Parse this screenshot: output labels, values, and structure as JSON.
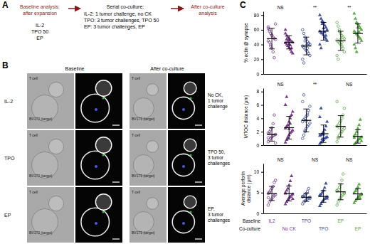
{
  "panel_a": {
    "label": "A",
    "start": [
      "Baseline analysis:",
      "after expansion"
    ],
    "conditions": [
      "IL-2",
      "TPO 50",
      "EP"
    ],
    "middle_title": "Serial co-culture:",
    "middle_lines": [
      "IL-2: 1 tumor challenge, no CK",
      "TPO: 3 tumor challenges, TPO 50",
      "EP: 3 tumor challenges, EP"
    ],
    "end": [
      "After co-culture",
      "analysis"
    ]
  },
  "panel_b": {
    "label": "B",
    "column_titles": [
      "Baseline",
      "After co-culture"
    ],
    "cell_labels": [
      "T cell",
      "BV173 (target)"
    ],
    "rows": [
      {
        "label": "IL-2",
        "note": [
          "No CK,",
          "1 tumor",
          "challenge"
        ]
      },
      {
        "label": "TPO",
        "note": [
          "TPO 50,",
          "3 tumor",
          "challenges"
        ]
      },
      {
        "label": "EP",
        "note": [
          "EP,",
          "3 tumor",
          "challenges"
        ]
      }
    ]
  },
  "panel_c_label": "C",
  "x_label_rows": [
    {
      "label": "Baseline",
      "labels": [
        "IL2",
        null,
        "TPO",
        null,
        "EP",
        null
      ]
    },
    {
      "label": "Co-culture",
      "labels": [
        null,
        "No CK",
        null,
        "TPO",
        null,
        "EP"
      ]
    }
  ],
  "chart_data": [
    {
      "type": "scatter",
      "y_label": [
        "% actin @ synapse"
      ],
      "ylim": [
        0,
        85
      ],
      "yticks": [
        0,
        20,
        40,
        60,
        80
      ],
      "annotations": [
        "NS",
        "**",
        "**"
      ],
      "series": [
        {
          "color": "#7a3b8f",
          "marker": "circle-open",
          "mean": 48,
          "sd": 14,
          "values": [
            62,
            58,
            55,
            52,
            50,
            48,
            47,
            45,
            43,
            40,
            35,
            30,
            22,
            68,
            64,
            60,
            38,
            53
          ]
        },
        {
          "color": "#7a3b8f",
          "marker": "triangle",
          "mean": 43,
          "sd": 9,
          "values": [
            55,
            52,
            50,
            48,
            46,
            44,
            43,
            42,
            40,
            38,
            36,
            33,
            30,
            28,
            60,
            47,
            45,
            41,
            39,
            35
          ]
        },
        {
          "color": "#3c4fa3",
          "marker": "circle-open",
          "mean": 38,
          "sd": 12,
          "values": [
            60,
            55,
            50,
            47,
            44,
            42,
            40,
            38,
            36,
            34,
            32,
            30,
            28,
            25,
            20,
            15,
            45,
            39,
            35,
            41
          ]
        },
        {
          "color": "#3c4fa3",
          "marker": "triangle",
          "mean": 58,
          "sd": 12,
          "values": [
            80,
            75,
            72,
            70,
            66,
            63,
            60,
            58,
            56,
            55,
            53,
            50,
            48,
            45,
            40,
            35,
            68,
            62,
            57,
            52
          ]
        },
        {
          "color": "#5aac44",
          "marker": "circle-open",
          "mean": 45,
          "sd": 13,
          "values": [
            70,
            65,
            60,
            55,
            52,
            50,
            48,
            46,
            44,
            42,
            40,
            38,
            35,
            30,
            25,
            20,
            58,
            47,
            43
          ]
        },
        {
          "color": "#5aac44",
          "marker": "triangle",
          "mean": 55,
          "sd": 13,
          "values": [
            82,
            75,
            70,
            68,
            65,
            62,
            60,
            58,
            56,
            54,
            52,
            50,
            48,
            45,
            40,
            35,
            30,
            63,
            57
          ]
        }
      ]
    },
    {
      "type": "scatter",
      "y_label": [
        "MTOC distance (μm)"
      ],
      "ylim": [
        0,
        8.5
      ],
      "yticks": [
        0,
        2,
        4,
        6,
        8
      ],
      "annotations": [
        "NS",
        "**",
        "NS"
      ],
      "series": [
        {
          "color": "#7a3b8f",
          "marker": "circle-open",
          "mean": 1.6,
          "sd": 1.0,
          "values": [
            0.5,
            0.8,
            1.0,
            1.2,
            1.4,
            1.5,
            1.6,
            1.8,
            2.0,
            2.3,
            2.6,
            3.2,
            4.5,
            0.3,
            1.1,
            1.7
          ]
        },
        {
          "color": "#7a3b8f",
          "marker": "triangle",
          "mean": 2.6,
          "sd": 1.7,
          "values": [
            0.4,
            0.8,
            1.2,
            1.5,
            1.8,
            2.0,
            2.2,
            2.5,
            2.8,
            3.0,
            3.5,
            4.0,
            4.5,
            5.0,
            6.0,
            7.2,
            1.0,
            2.4,
            3.2
          ]
        },
        {
          "color": "#3c4fa3",
          "marker": "circle-open",
          "mean": 3.7,
          "sd": 1.7,
          "values": [
            1.0,
            1.5,
            2.0,
            2.5,
            2.8,
            3.0,
            3.3,
            3.5,
            3.8,
            4.0,
            4.3,
            4.8,
            5.2,
            5.8,
            6.5,
            7.5,
            2.2,
            3.6,
            4.5
          ]
        },
        {
          "color": "#3c4fa3",
          "marker": "triangle",
          "mean": 1.7,
          "sd": 1.3,
          "values": [
            0.2,
            0.4,
            0.6,
            0.8,
            1.0,
            1.1,
            1.2,
            1.4,
            1.5,
            1.7,
            2.0,
            2.3,
            2.8,
            3.5,
            4.2,
            5.5,
            0.9,
            1.6
          ]
        },
        {
          "color": "#5aac44",
          "marker": "circle-open",
          "mean": 2.8,
          "sd": 1.6,
          "values": [
            0.5,
            1.0,
            1.5,
            1.8,
            2.0,
            2.3,
            2.5,
            2.8,
            3.0,
            3.3,
            3.6,
            4.0,
            4.5,
            5.5,
            6.5,
            1.2,
            2.6
          ]
        },
        {
          "color": "#5aac44",
          "marker": "triangle",
          "mean": 1.3,
          "sd": 1.0,
          "values": [
            0.1,
            0.3,
            0.5,
            0.7,
            0.9,
            1.0,
            1.2,
            1.4,
            1.6,
            2.0,
            2.5,
            3.0,
            3.8,
            0.6,
            1.1
          ]
        }
      ]
    },
    {
      "type": "scatter",
      "y_label": [
        "Average perforin",
        "distance (μm)"
      ],
      "ylim": [
        0,
        12
      ],
      "yticks": [
        0,
        5,
        10
      ],
      "annotations": [
        "NS",
        "NS",
        "NS"
      ],
      "series": [
        {
          "color": "#7a3b8f",
          "marker": "circle-open",
          "mean": 4.8,
          "sd": 1.7,
          "values": [
            2.0,
            2.8,
            3.2,
            3.5,
            4.0,
            4.3,
            4.5,
            4.8,
            5.2,
            5.6,
            6.0,
            6.5,
            7.5,
            8.0,
            3.8,
            5.0
          ]
        },
        {
          "color": "#7a3b8f",
          "marker": "triangle",
          "mean": 4.8,
          "sd": 1.8,
          "values": [
            2.2,
            2.8,
            3.3,
            3.7,
            4.0,
            4.3,
            4.6,
            5.0,
            5.5,
            6.0,
            6.8,
            7.8,
            9.0,
            3.5,
            4.8
          ]
        },
        {
          "color": "#3c4fa3",
          "marker": "circle-open",
          "mean": 3.9,
          "sd": 1.0,
          "values": [
            2.3,
            2.8,
            3.0,
            3.3,
            3.5,
            3.7,
            3.9,
            4.0,
            4.2,
            4.5,
            4.8,
            5.3,
            6.0,
            3.6,
            4.1
          ]
        },
        {
          "color": "#3c4fa3",
          "marker": "triangle",
          "mean": 4.1,
          "sd": 1.4,
          "values": [
            1.8,
            2.3,
            2.8,
            3.2,
            3.5,
            3.8,
            4.0,
            4.3,
            4.6,
            5.0,
            5.5,
            6.2,
            7.2,
            3.6,
            4.4
          ]
        },
        {
          "color": "#5aac44",
          "marker": "circle-open",
          "mean": 5.2,
          "sd": 1.9,
          "values": [
            2.0,
            2.8,
            3.3,
            3.8,
            4.2,
            4.6,
            5.0,
            5.4,
            5.8,
            6.3,
            7.0,
            8.0,
            9.5,
            4.8,
            5.5
          ]
        },
        {
          "color": "#5aac44",
          "marker": "triangle",
          "mean": 4.7,
          "sd": 1.3,
          "values": [
            2.5,
            3.0,
            3.4,
            3.8,
            4.1,
            4.4,
            4.7,
            5.0,
            5.4,
            5.8,
            6.3,
            7.0,
            3.6,
            4.5
          ]
        }
      ]
    }
  ]
}
